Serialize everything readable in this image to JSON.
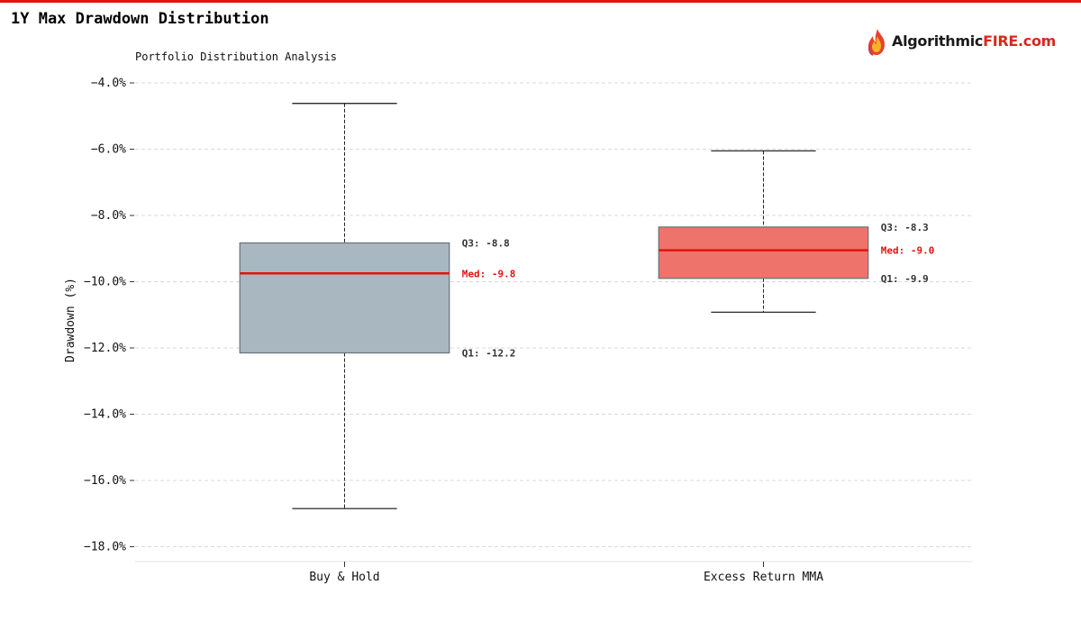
{
  "header": {
    "title": "1Y Max Drawdown Distribution",
    "accent_color": "#e0140f"
  },
  "logo": {
    "name": "flame-logo-icon",
    "text_dark": "Algorithmic",
    "text_red": "FIRE.com"
  },
  "chart_data": {
    "type": "box",
    "title": "Portfolio Distribution Analysis",
    "xlabel": "",
    "ylabel": "Drawdown (%)",
    "ylim": [
      -18.45,
      -4.0
    ],
    "yticks": [
      -4.0,
      -6.0,
      -8.0,
      -10.0,
      -12.0,
      -14.0,
      -16.0,
      -18.0
    ],
    "ytick_labels": [
      "−4.0%",
      "−6.0%",
      "−8.0%",
      "−10.0%",
      "−12.0%",
      "−14.0%",
      "−16.0%",
      "−18.0%"
    ],
    "grid": true,
    "series": [
      {
        "name": "Buy & Hold",
        "whisker_low": -16.85,
        "q1": -12.15,
        "median": -9.75,
        "q3": -8.83,
        "whisker_high": -4.62,
        "color": "#a9b8c0",
        "label_q3": "Q3: -8.8",
        "label_median": "Med: -9.8",
        "label_q1": "Q1: -12.2"
      },
      {
        "name": "Excess Return MMA",
        "whisker_low": -10.92,
        "q1": -9.9,
        "median": -9.05,
        "q3": -8.35,
        "whisker_high": -6.05,
        "color": "#ee736b",
        "label_q3": "Q3: -8.3",
        "label_median": "Med: -9.0",
        "label_q1": "Q1: -9.9"
      }
    ],
    "median_color": "#e0140f"
  }
}
